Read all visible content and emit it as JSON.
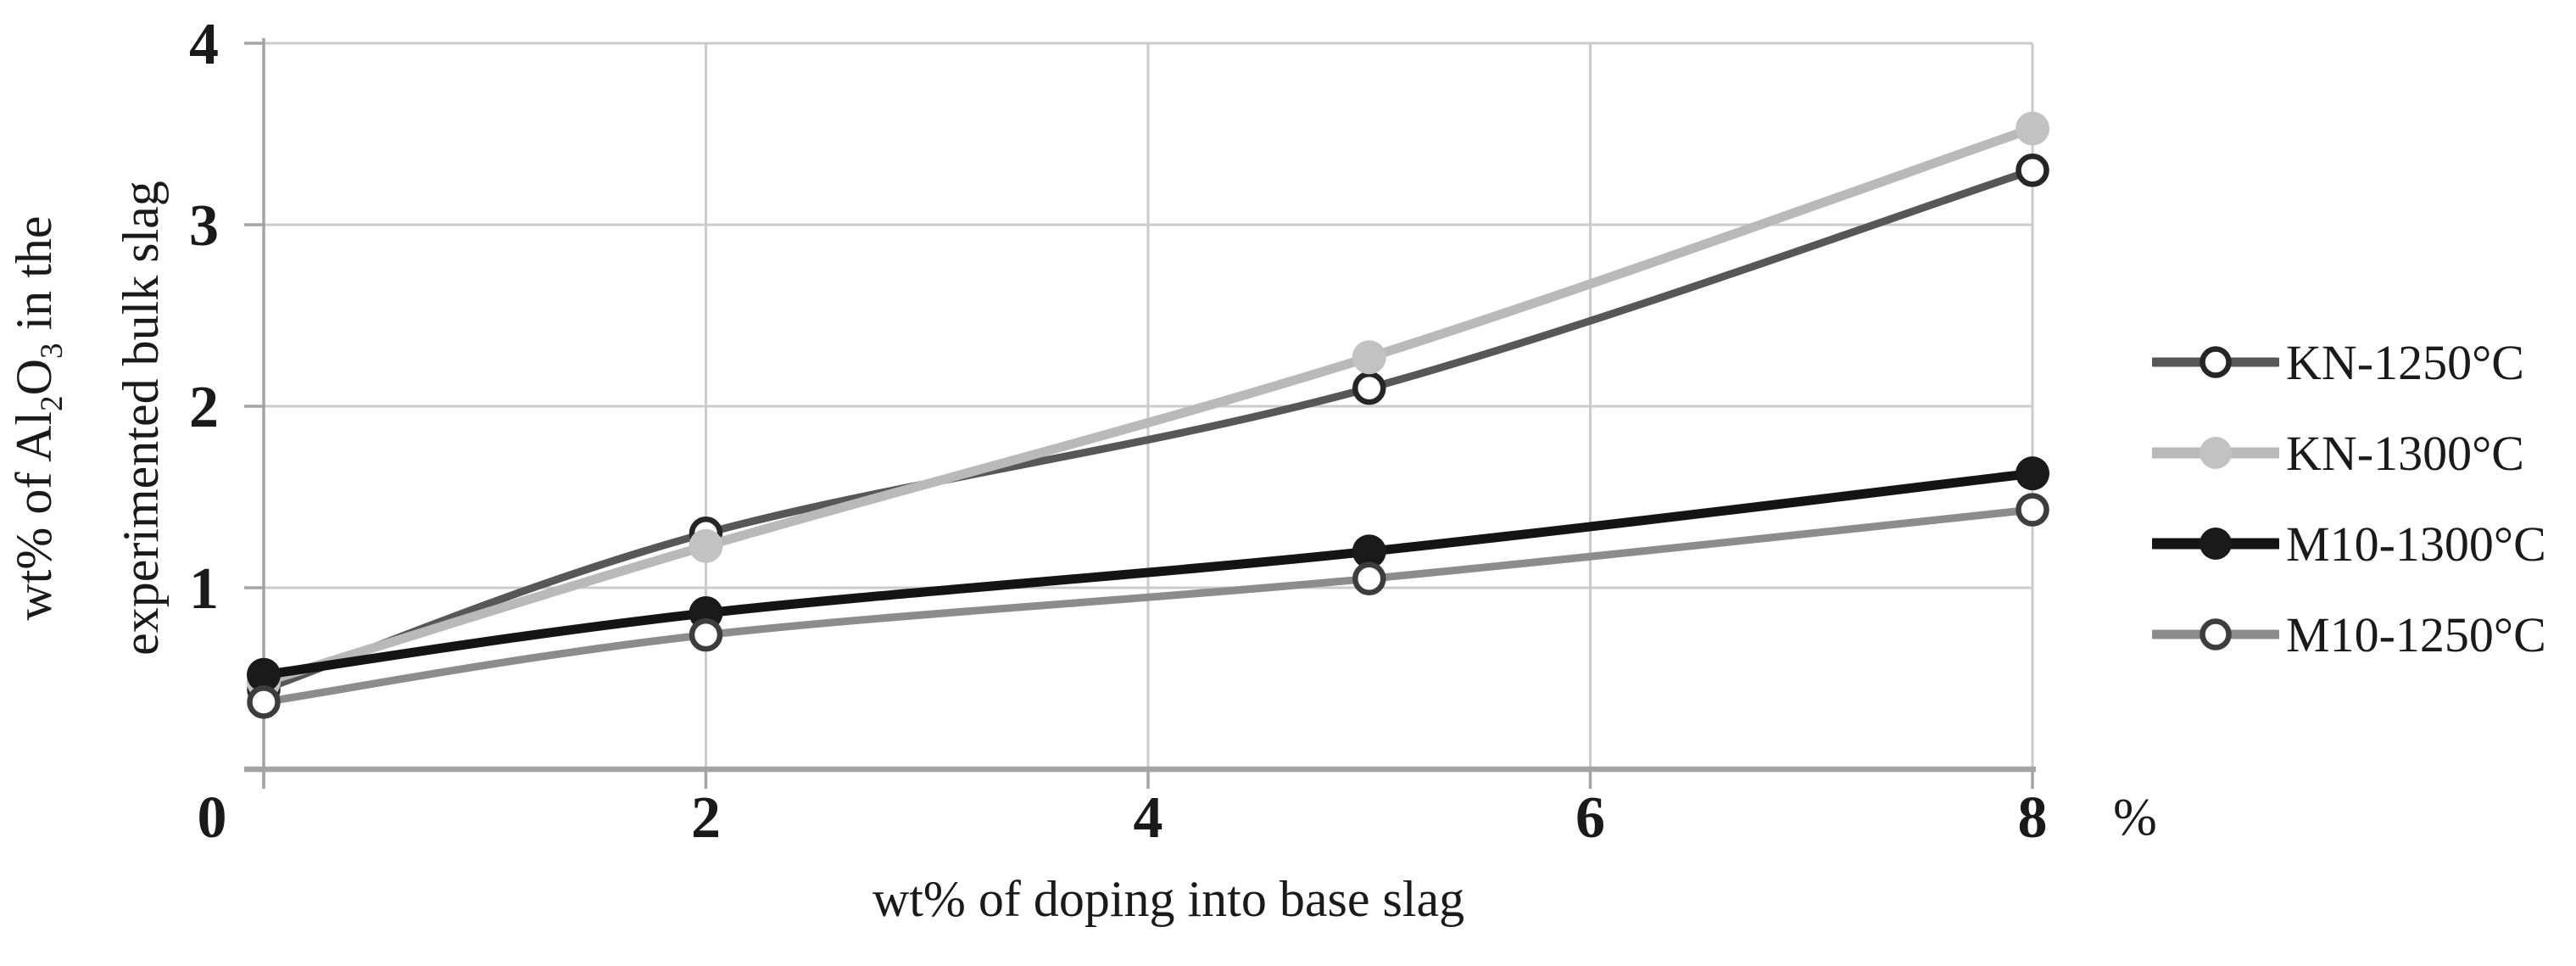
{
  "chart_data": {
    "type": "line",
    "title": "",
    "xlabel": "wt% of doping into base slag",
    "ylabel": {
      "part1": "wt% of Al",
      "sub1": "2",
      "part2": "O",
      "sub2": "3",
      "part3": " in the",
      "line2": "experimented bulk slag"
    },
    "x_unit": "%",
    "origin_label": "0",
    "x": [
      0,
      2,
      5,
      8
    ],
    "xticks": [
      2,
      4,
      6,
      8
    ],
    "yticks": [
      1,
      2,
      3,
      4
    ],
    "xlim": [
      0,
      8
    ],
    "ylim": [
      0,
      4
    ],
    "grid": true,
    "legend_position": "right",
    "series": [
      {
        "name": "KN-1250°C",
        "values": [
          0.44,
          1.3,
          2.1,
          3.3
        ],
        "color": "#575757",
        "line_width": 9,
        "marker": "open",
        "marker_color": "#262626"
      },
      {
        "name": "KN-1300°C",
        "values": [
          0.48,
          1.23,
          2.27,
          3.53
        ],
        "color": "#b9b9b9",
        "line_width": 11,
        "marker": "filled",
        "marker_color": "#c2c2c2"
      },
      {
        "name": "M10-1300°C",
        "values": [
          0.52,
          0.86,
          1.2,
          1.63
        ],
        "color": "#141414",
        "line_width": 11,
        "marker": "filled",
        "marker_color": "#1a1a1a"
      },
      {
        "name": "M10-1250°C",
        "values": [
          0.37,
          0.74,
          1.05,
          1.43
        ],
        "color": "#8c8c8c",
        "line_width": 9,
        "marker": "open",
        "marker_color": "#3d3d3d"
      }
    ],
    "colors": {
      "grid": "#cbcbcb",
      "axis": "#a3a3a3",
      "text": "#1a1a1a"
    }
  }
}
